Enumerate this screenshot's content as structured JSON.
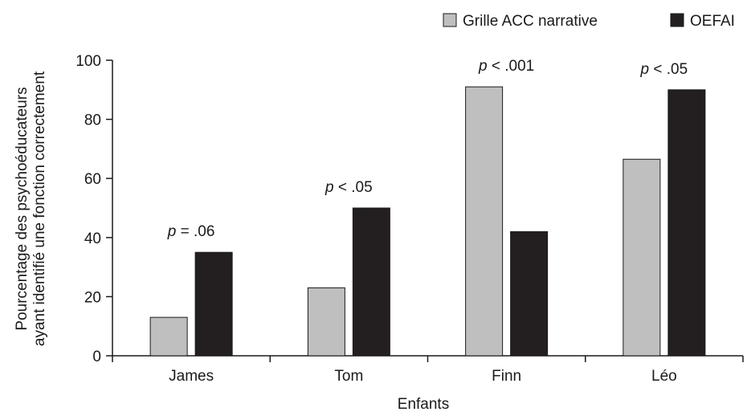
{
  "chart_data": {
    "type": "bar",
    "title": "",
    "xlabel": "Enfants",
    "ylabel_lines": [
      "Pourcentage des psychoéducateurs",
      "ayant identifié une fonction correctement"
    ],
    "ylim": [
      0,
      100
    ],
    "yticks": [
      0,
      20,
      40,
      60,
      80,
      100
    ],
    "categories": [
      "James",
      "Tom",
      "Finn",
      "Léo"
    ],
    "series": [
      {
        "name": "Grille ACC narrative",
        "color": "#bfbfbf",
        "values": [
          13,
          23,
          91,
          66.5
        ]
      },
      {
        "name": "OEFAI",
        "color": "#231f20",
        "values": [
          35,
          50,
          42,
          90
        ]
      }
    ],
    "annotations": [
      {
        "p": "p",
        "rest": " = .06"
      },
      {
        "p": "p",
        "rest": " < .05"
      },
      {
        "p": "p",
        "rest": " < .001"
      },
      {
        "p": "p",
        "rest": " < .05"
      }
    ],
    "legend_position": "top-right",
    "grid": false
  }
}
